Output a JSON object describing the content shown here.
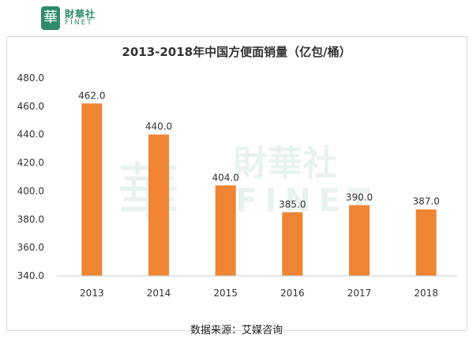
{
  "logo": {
    "mark": "華",
    "name_cn": "財華社",
    "name_en": "FINET"
  },
  "chart_data": {
    "type": "bar",
    "title": "2013-2018年中国方便面销量（亿包/桶）",
    "categories": [
      "2013",
      "2014",
      "2015",
      "2016",
      "2017",
      "2018"
    ],
    "values": [
      462.0,
      440.0,
      404.0,
      385.0,
      390.0,
      387.0
    ],
    "value_labels": [
      "462.0",
      "440.0",
      "404.0",
      "385.0",
      "390.0",
      "387.0"
    ],
    "ylim": [
      340,
      480
    ],
    "yticks": [
      "340.0",
      "360.0",
      "380.0",
      "400.0",
      "420.0",
      "440.0",
      "460.0",
      "480.0"
    ],
    "xlabel": "",
    "ylabel": "",
    "grid": false,
    "bar_color": "#ef8533"
  },
  "source": "数据来源：艾媒咨询"
}
